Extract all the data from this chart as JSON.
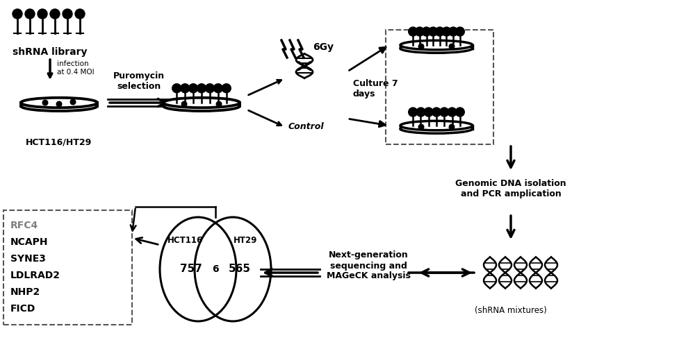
{
  "bg_color": "#ffffff",
  "title": "",
  "shrna_library_label": "shRNA library",
  "hct116_ht29_label": "HCT116/HT29",
  "infection_label": "infection\nat 0.4 MOI",
  "puromycin_label": "Puromycin\nselection",
  "culture_label": "Culture 7\ndays",
  "control_label": "Control",
  "irradiation_label": "6Gy",
  "genomic_label": "Genomic DNA isolation\nand PCR amplication",
  "ngs_label": "Next-generation\nsequencing and\nMAGeCK analysis",
  "shrna_mix_label": "(shRNA mixtures)",
  "venn_hct116_label": "HCT116",
  "venn_ht29_label": "HT29",
  "venn_hct116_num": "757",
  "venn_ht29_num": "565",
  "venn_intersect_num": "6",
  "gene_list": [
    "RFC4",
    "NCAPH",
    "SYNE3",
    "LDLRAD2",
    "NHP2",
    "FICD"
  ],
  "rfc4_color": "#808080",
  "text_color": "#000000",
  "line_color": "#000000",
  "dashed_box_color": "#555555"
}
